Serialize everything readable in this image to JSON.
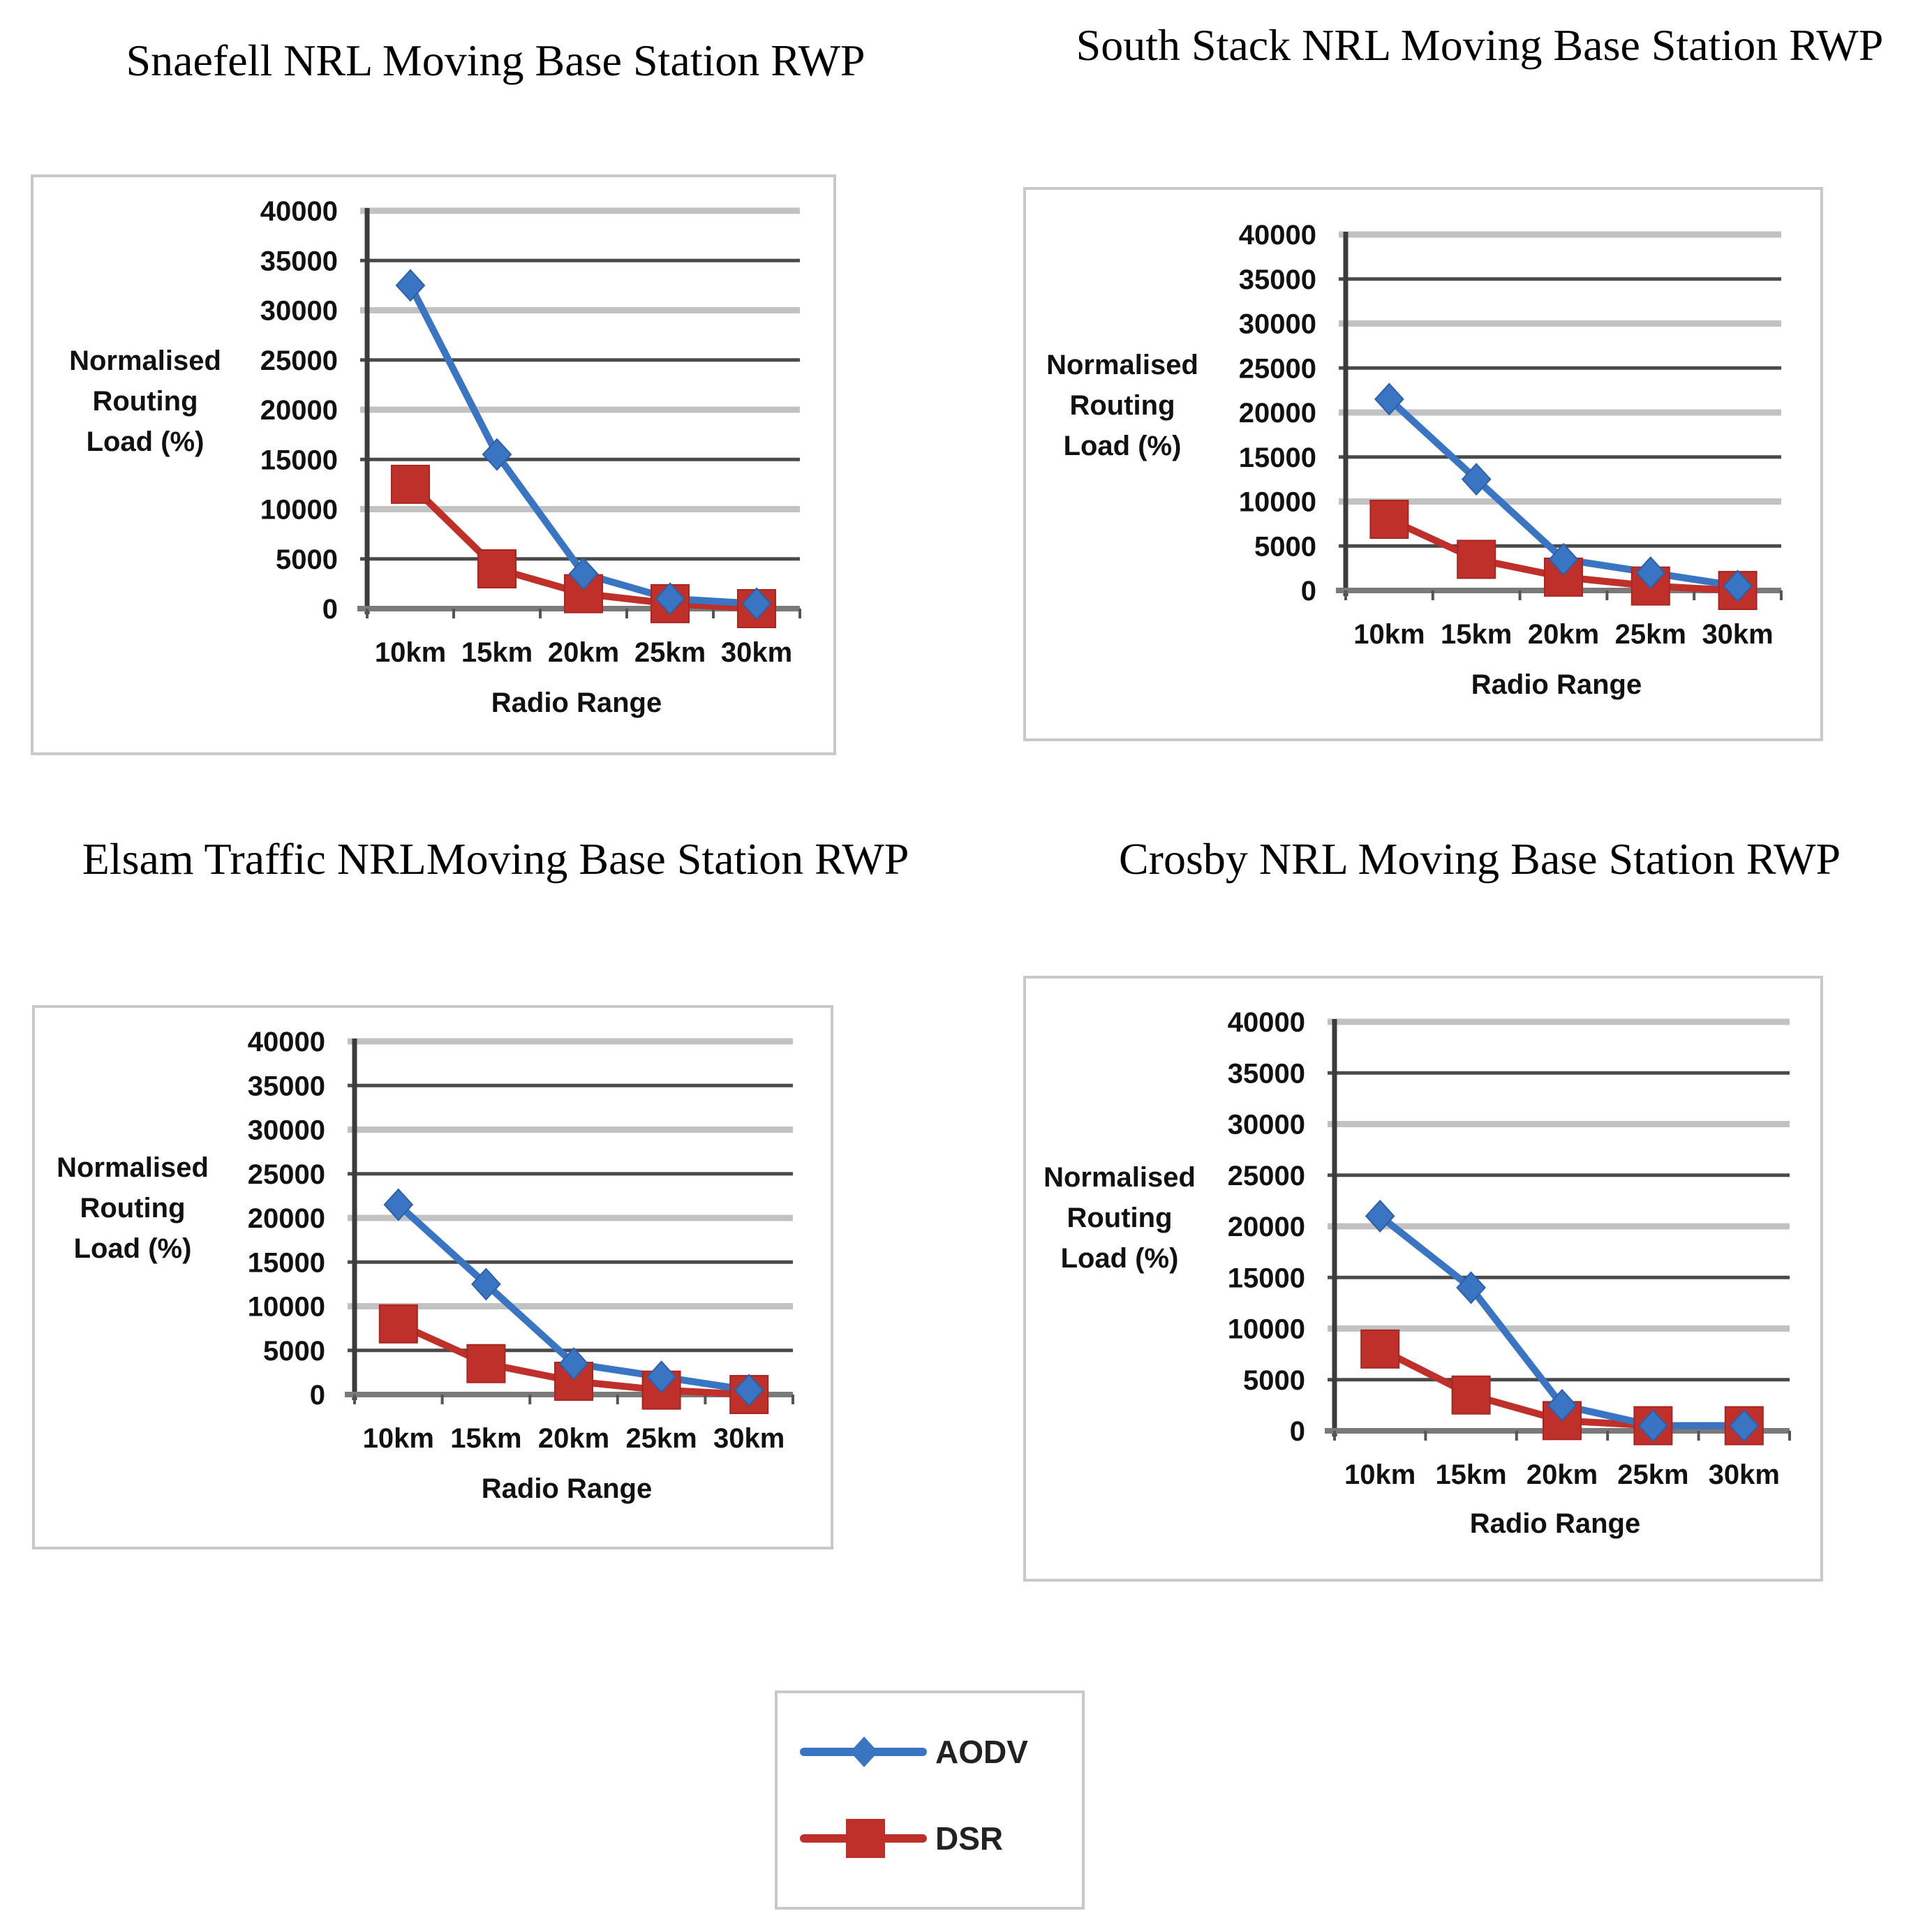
{
  "chart_data": [
    {
      "type": "line",
      "title": "Snaefell NRL Moving Base Station RWP",
      "categories": [
        "10km",
        "15km",
        "20km",
        "25km",
        "30km"
      ],
      "xlabel": "Radio Range",
      "ylabel": [
        "Normalised",
        "Routing",
        "Load (%)"
      ],
      "ylim": [
        0,
        40000
      ],
      "yticks": [
        0,
        5000,
        10000,
        15000,
        20000,
        25000,
        30000,
        35000,
        40000
      ],
      "grid": true,
      "series": [
        {
          "name": "AODV",
          "values": [
            32500,
            15500,
            3500,
            1000,
            500
          ]
        },
        {
          "name": "DSR",
          "values": [
            12500,
            4000,
            1500,
            500,
            0
          ]
        }
      ]
    },
    {
      "type": "line",
      "title": "South Stack NRL Moving Base Station RWP",
      "categories": [
        "10km",
        "15km",
        "20km",
        "25km",
        "30km"
      ],
      "xlabel": "Radio Range",
      "ylabel": [
        "Normalised",
        "Routing",
        "Load (%)"
      ],
      "ylim": [
        0,
        40000
      ],
      "yticks": [
        0,
        5000,
        10000,
        15000,
        20000,
        25000,
        30000,
        35000,
        40000
      ],
      "grid": true,
      "series": [
        {
          "name": "AODV",
          "values": [
            21500,
            12500,
            3500,
            2000,
            500
          ]
        },
        {
          "name": "DSR",
          "values": [
            8000,
            3500,
            1500,
            500,
            0
          ]
        }
      ]
    },
    {
      "type": "line",
      "title": "Elsam Traffic NRLMoving Base Station RWP",
      "categories": [
        "10km",
        "15km",
        "20km",
        "25km",
        "30km"
      ],
      "xlabel": "Radio Range",
      "ylabel": [
        "Normalised",
        "Routing",
        "Load (%)"
      ],
      "ylim": [
        0,
        40000
      ],
      "yticks": [
        0,
        5000,
        10000,
        15000,
        20000,
        25000,
        30000,
        35000,
        40000
      ],
      "grid": true,
      "series": [
        {
          "name": "AODV",
          "values": [
            21500,
            12500,
            3500,
            2000,
            500
          ]
        },
        {
          "name": "DSR",
          "values": [
            8000,
            3500,
            1500,
            500,
            0
          ]
        }
      ]
    },
    {
      "type": "line",
      "title": "Crosby NRL Moving Base Station RWP",
      "categories": [
        "10km",
        "15km",
        "20km",
        "25km",
        "30km"
      ],
      "xlabel": "Radio Range",
      "ylabel": [
        "Normalised",
        "Routing",
        "Load (%)"
      ],
      "ylim": [
        0,
        40000
      ],
      "yticks": [
        0,
        5000,
        10000,
        15000,
        20000,
        25000,
        30000,
        35000,
        40000
      ],
      "grid": true,
      "series": [
        {
          "name": "AODV",
          "values": [
            21000,
            14000,
            2500,
            500,
            500
          ]
        },
        {
          "name": "DSR",
          "values": [
            8000,
            3500,
            1000,
            500,
            500
          ]
        }
      ]
    }
  ],
  "legend": {
    "placement": "bottom-center",
    "items": [
      {
        "name": "AODV",
        "color": "#3A75C4",
        "marker": "diamond"
      },
      {
        "name": "DSR",
        "color": "#C0302B",
        "marker": "square"
      }
    ]
  }
}
